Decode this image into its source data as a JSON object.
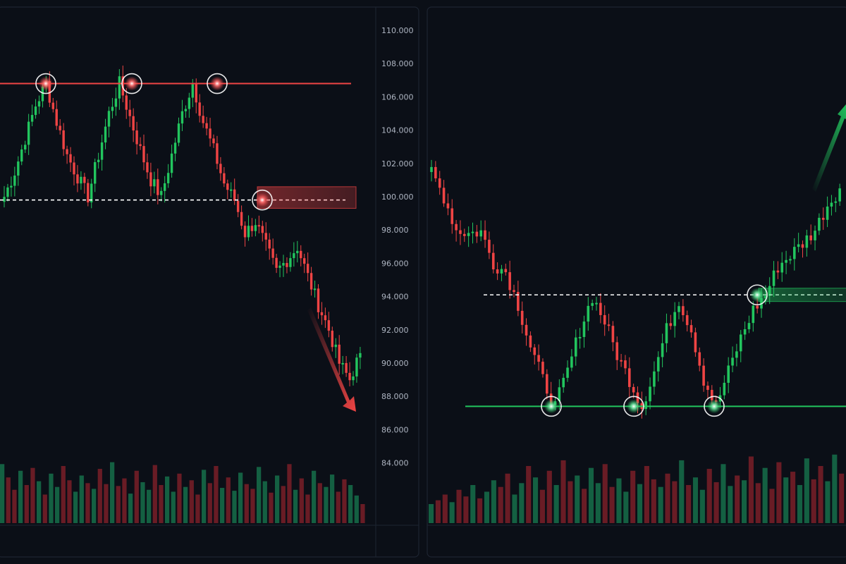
{
  "theme": {
    "background": "#0b0f17",
    "panel_border": "#1d2431",
    "grid": "#151b26",
    "bull": "#22c55e",
    "bear": "#ef4444",
    "bull_volume": "#166e4a",
    "bear_volume": "#7a1f28"
  },
  "chart_data": [
    {
      "type": "candlestick",
      "pattern": "triple-top",
      "title": "",
      "xlabel": "",
      "ylabel": "",
      "ylim": [
        83000,
        111000
      ],
      "y_ticks": [
        "110.000",
        "108.000",
        "106.000",
        "104.000",
        "102.000",
        "100.000",
        "98.000",
        "96.000",
        "94.000",
        "92.000",
        "90.000",
        "88.000",
        "86.000",
        "84.000"
      ],
      "resistance_level": 106800,
      "neckline_level": 99800,
      "peaks": [
        106800,
        106800,
        106800
      ],
      "breakdown_point": 99800,
      "retest_zone": [
        99300,
        100600
      ],
      "trend_arrow": "down",
      "anchors": [
        100000,
        101500,
        103500,
        105500,
        106800,
        104500,
        102500,
        101200,
        100000,
        102500,
        105000,
        106800,
        104800,
        102800,
        101000,
        100000,
        102500,
        105000,
        106800,
        104500,
        102800,
        100800,
        99800,
        97800,
        98500,
        97000,
        95500,
        96200,
        97000,
        95200,
        93500,
        92000,
        90000,
        89000,
        90600
      ],
      "volume_series": [
        62,
        48,
        35,
        55,
        40,
        58,
        44,
        30,
        52,
        38,
        60,
        45,
        33,
        50,
        42,
        36,
        57,
        41,
        64,
        39,
        47,
        31,
        55,
        43,
        35,
        61,
        40,
        49,
        33,
        52,
        38,
        45,
        30,
        56,
        42,
        60,
        37,
        48,
        34,
        53,
        41,
        36,
        59,
        44,
        32,
        50,
        39,
        62,
        35,
        47,
        30,
        55,
        42,
        38,
        51,
        33,
        46,
        40,
        29,
        20
      ]
    },
    {
      "type": "candlestick",
      "pattern": "triple-bottom",
      "title": "",
      "xlabel": "",
      "ylabel": "",
      "ylim": [
        83000,
        111000
      ],
      "y_ticks": [],
      "support_level": 87400,
      "neckline_level": 94100,
      "troughs": [
        87400,
        87400,
        87400
      ],
      "breakout_point": 94100,
      "retest_zone": [
        93700,
        94500
      ],
      "trend_arrow": "up",
      "anchors": [
        101500,
        100000,
        98000,
        97800,
        97900,
        96000,
        95500,
        93500,
        91000,
        89000,
        87400,
        89500,
        92000,
        94000,
        92500,
        90500,
        89000,
        87400,
        89500,
        92000,
        93800,
        92000,
        89000,
        87400,
        89500,
        91500,
        93200,
        94100,
        95800,
        96500,
        97200,
        98000,
        99500,
        100500
      ],
      "volume_series": [
        20,
        24,
        30,
        22,
        35,
        28,
        40,
        26,
        33,
        45,
        38,
        52,
        30,
        42,
        60,
        48,
        35,
        55,
        40,
        66,
        44,
        50,
        36,
        58,
        42,
        62,
        38,
        47,
        33,
        55,
        41,
        60,
        46,
        38,
        52,
        44,
        66,
        40,
        48,
        35,
        57,
        43,
        62,
        39,
        50,
        45,
        70,
        42,
        58,
        36,
        64,
        48,
        54,
        40,
        68,
        46,
        60,
        44,
        72,
        52
      ]
    }
  ]
}
